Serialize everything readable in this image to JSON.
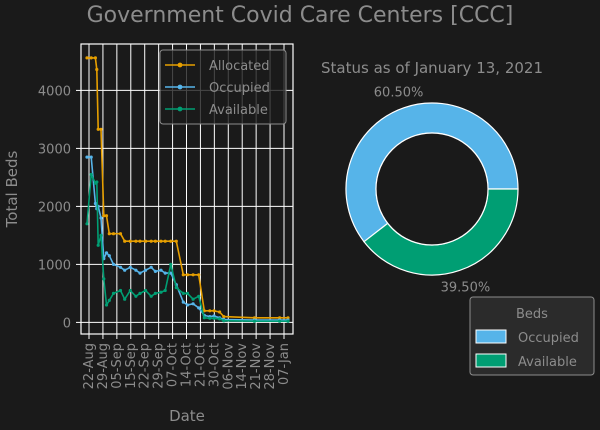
{
  "title": "Government Covid Care Centers [CCC]",
  "colors": {
    "background": "#1a1a1a",
    "allocated": "#e69f00",
    "occupied": "#56b4e9",
    "available": "#009e73",
    "text": "#8c8c8c",
    "grid": "#ffffff"
  },
  "chart_data": [
    {
      "type": "line",
      "xlabel": "Date",
      "ylabel": "Total Beds",
      "grid": true,
      "legend_position": "top-right",
      "x_tick_labels": [
        "22-Aug",
        "29-Aug",
        "05-Sep",
        "15-Sep",
        "22-Sep",
        "29-Sep",
        "07-Oct",
        "14-Oct",
        "21-Oct",
        "30-Oct",
        "06-Nov",
        "14-Nov",
        "21-Nov",
        "28-Nov",
        "07-Jan"
      ],
      "y_ticks": [
        0,
        1000,
        2000,
        3000,
        4000
      ],
      "ylim": [
        -200,
        4800
      ],
      "x": [
        "2020-08-22",
        "2020-08-25",
        "2020-08-28",
        "2020-08-29",
        "2020-08-30",
        "2020-09-01",
        "2020-09-03",
        "2020-09-05",
        "2020-09-07",
        "2020-09-10",
        "2020-09-15",
        "2020-09-18",
        "2020-09-22",
        "2020-09-26",
        "2020-09-29",
        "2020-10-03",
        "2020-10-07",
        "2020-10-10",
        "2020-10-14",
        "2020-10-17",
        "2020-10-21",
        "2020-10-25",
        "2020-10-30",
        "2020-11-02",
        "2020-11-06",
        "2020-11-10",
        "2020-11-14",
        "2020-11-18",
        "2020-11-21",
        "2020-11-25",
        "2020-11-28",
        "2020-12-20",
        "2021-01-07",
        "2021-01-13"
      ],
      "series": [
        {
          "name": "Allocated",
          "color": "#e69f00",
          "values": [
            4560,
            4560,
            4560,
            4360,
            3330,
            3330,
            1840,
            1840,
            1530,
            1530,
            1530,
            1400,
            1400,
            1400,
            1400,
            1400,
            1400,
            1400,
            1400,
            1400,
            1400,
            1400,
            820,
            820,
            820,
            820,
            200,
            200,
            200,
            180,
            100,
            80,
            80,
            80
          ]
        },
        {
          "name": "Occupied",
          "color": "#56b4e9",
          "values": [
            2850,
            2850,
            2050,
            1960,
            2000,
            1800,
            1100,
            1200,
            1150,
            1000,
            950,
            900,
            950,
            900,
            850,
            900,
            950,
            880,
            900,
            850,
            850,
            650,
            350,
            300,
            320,
            250,
            120,
            100,
            110,
            80,
            50,
            40,
            40,
            40
          ]
        },
        {
          "name": "Available",
          "color": "#009e73",
          "values": [
            1700,
            2550,
            2400,
            2420,
            1330,
            1500,
            750,
            300,
            380,
            500,
            550,
            400,
            550,
            450,
            500,
            550,
            450,
            500,
            520,
            550,
            1000,
            600,
            500,
            500,
            400,
            450,
            80,
            70,
            70,
            60,
            30,
            20,
            20,
            20
          ]
        }
      ]
    },
    {
      "type": "pie",
      "title": "Status as of January 13, 2021",
      "legend_title": "Beds",
      "legend_position": "bottom-right",
      "slices": [
        {
          "name": "Occupied",
          "value": 60.5,
          "label": "60.50%",
          "color": "#56b4e9"
        },
        {
          "name": "Available",
          "value": 39.5,
          "label": "39.50%",
          "color": "#009e73"
        }
      ]
    }
  ]
}
